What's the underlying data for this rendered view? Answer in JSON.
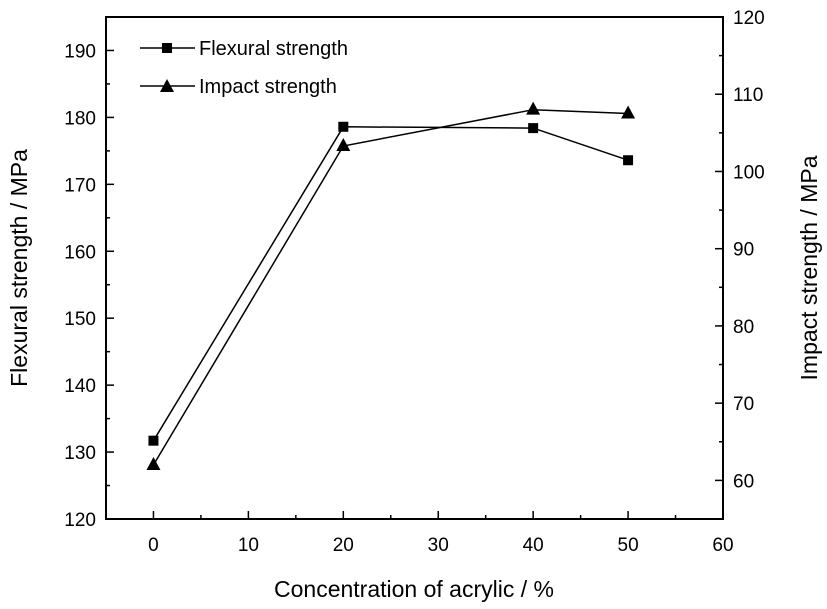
{
  "chart_data": {
    "type": "line",
    "title": "",
    "xlabel": "Concentration of acrylic / %",
    "ylabel_left": "Flexural strength / MPa",
    "ylabel_right": "Impact strength / MPa",
    "xlim": [
      -5,
      60
    ],
    "ylim_left": [
      120,
      195
    ],
    "ylim_right": [
      55,
      120
    ],
    "x_ticks": [
      0,
      10,
      20,
      30,
      40,
      50,
      60
    ],
    "y_ticks_left": [
      120,
      130,
      140,
      150,
      160,
      170,
      180,
      190
    ],
    "y_ticks_right": [
      60,
      70,
      80,
      90,
      100,
      110,
      120
    ],
    "grid": false,
    "legend_position": "top-left",
    "series": [
      {
        "name": "Flexural strength",
        "axis": "left",
        "marker": "square",
        "x": [
          0,
          20,
          40,
          50
        ],
        "y": [
          131.7,
          178.6,
          178.4,
          173.6
        ]
      },
      {
        "name": "Impact strength",
        "axis": "right",
        "marker": "triangle",
        "x": [
          0,
          20,
          40,
          50
        ],
        "y": [
          62.0,
          103.3,
          108.0,
          107.5
        ]
      }
    ]
  }
}
